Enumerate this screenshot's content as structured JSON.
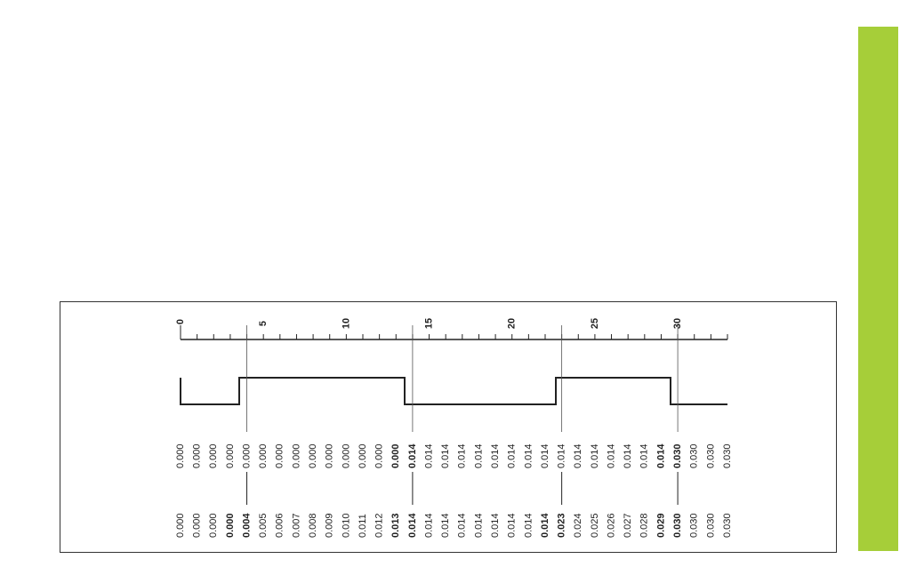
{
  "ruler": {
    "labels": [
      "0",
      "5",
      "10",
      "15",
      "20",
      "25",
      "30"
    ]
  },
  "rows": [
    [
      {
        "text": "0.000",
        "bold": false
      },
      {
        "text": "0.000",
        "bold": false
      },
      {
        "text": "0.000",
        "bold": false
      },
      {
        "text": "0.000",
        "bold": false
      },
      {
        "text": "0.000",
        "bold": false
      },
      {
        "text": "0.000",
        "bold": false
      },
      {
        "text": "0.000",
        "bold": false
      },
      {
        "text": "0.000",
        "bold": false
      },
      {
        "text": "0.000",
        "bold": false
      },
      {
        "text": "0.000",
        "bold": false
      },
      {
        "text": "0.000",
        "bold": false
      },
      {
        "text": "0.000",
        "bold": false
      },
      {
        "text": "0.000",
        "bold": false
      },
      {
        "text": "0.000",
        "bold": true
      },
      {
        "text": "0.014",
        "bold": true
      },
      {
        "text": "0.014",
        "bold": false
      },
      {
        "text": "0.014",
        "bold": false
      },
      {
        "text": "0.014",
        "bold": false
      },
      {
        "text": "0.014",
        "bold": false
      },
      {
        "text": "0.014",
        "bold": false
      },
      {
        "text": "0.014",
        "bold": false
      },
      {
        "text": "0.014",
        "bold": false
      },
      {
        "text": "0.014",
        "bold": false
      },
      {
        "text": "0.014",
        "bold": false
      },
      {
        "text": "0.014",
        "bold": false
      },
      {
        "text": "0.014",
        "bold": false
      },
      {
        "text": "0.014",
        "bold": false
      },
      {
        "text": "0.014",
        "bold": false
      },
      {
        "text": "0.014",
        "bold": false
      },
      {
        "text": "0.014",
        "bold": true
      },
      {
        "text": "0.030",
        "bold": true
      },
      {
        "text": "0.030",
        "bold": false
      },
      {
        "text": "0.030",
        "bold": false
      },
      {
        "text": "0.030",
        "bold": false
      }
    ],
    [
      {
        "text": "0.000",
        "bold": false
      },
      {
        "text": "0.000",
        "bold": false
      },
      {
        "text": "0.000",
        "bold": false
      },
      {
        "text": "0.000",
        "bold": true
      },
      {
        "text": "0.004",
        "bold": true
      },
      {
        "text": "0.005",
        "bold": false
      },
      {
        "text": "0.006",
        "bold": false
      },
      {
        "text": "0.007",
        "bold": false
      },
      {
        "text": "0.008",
        "bold": false
      },
      {
        "text": "0.009",
        "bold": false
      },
      {
        "text": "0.010",
        "bold": false
      },
      {
        "text": "0.011",
        "bold": false
      },
      {
        "text": "0.012",
        "bold": false
      },
      {
        "text": "0.013",
        "bold": true
      },
      {
        "text": "0.014",
        "bold": true
      },
      {
        "text": "0.014",
        "bold": false
      },
      {
        "text": "0.014",
        "bold": false
      },
      {
        "text": "0.014",
        "bold": false
      },
      {
        "text": "0.014",
        "bold": false
      },
      {
        "text": "0.014",
        "bold": false
      },
      {
        "text": "0.014",
        "bold": false
      },
      {
        "text": "0.014",
        "bold": false
      },
      {
        "text": "0.014",
        "bold": true
      },
      {
        "text": "0.023",
        "bold": true
      },
      {
        "text": "0.024",
        "bold": false
      },
      {
        "text": "0.025",
        "bold": false
      },
      {
        "text": "0.026",
        "bold": false
      },
      {
        "text": "0.027",
        "bold": false
      },
      {
        "text": "0.028",
        "bold": false
      },
      {
        "text": "0.029",
        "bold": true
      },
      {
        "text": "0.030",
        "bold": true
      },
      {
        "text": "0.030",
        "bold": false
      },
      {
        "text": "0.030",
        "bold": false
      },
      {
        "text": "0.030",
        "bold": false
      }
    ]
  ]
}
